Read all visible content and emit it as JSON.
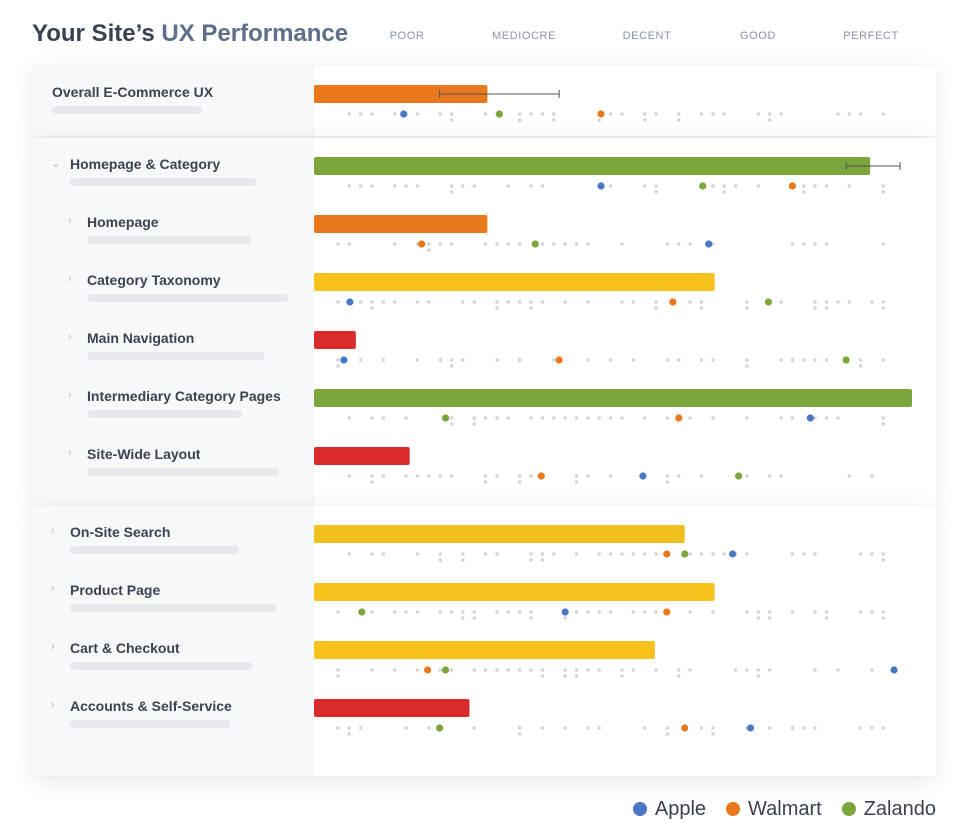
{
  "title": {
    "prefix": "Your Site’s",
    "accent": "UX Performance"
  },
  "chart_data": {
    "type": "bar",
    "orientation": "horizontal",
    "scale": [
      "POOR",
      "MEDIOCRE",
      "DECENT",
      "GOOD",
      "PERFECT"
    ],
    "xlim": [
      0,
      100
    ],
    "legend": {
      "placement": "bottom-right"
    },
    "series": [
      {
        "name": "Apple",
        "color": "#4a78c4"
      },
      {
        "name": "Walmart",
        "color": "#e8781b"
      },
      {
        "name": "Zalando",
        "color": "#7ca63b"
      }
    ],
    "rows": [
      {
        "label": "Overall E-Commerce UX",
        "group": 0,
        "level": 0,
        "value": 29,
        "error": [
          21,
          41
        ],
        "color": "#e8781b",
        "apple": 15,
        "walmart": 48,
        "zalando": 31
      },
      {
        "label": "Homepage & Category",
        "group": 1,
        "level": 0,
        "value": 93,
        "error": [
          89,
          98
        ],
        "color": "#7ca63b",
        "apple": 48,
        "walmart": 80,
        "zalando": 65
      },
      {
        "label": "Homepage",
        "group": 1,
        "level": 1,
        "value": 29,
        "color": "#e8781b",
        "apple": 66,
        "walmart": 18,
        "zalando": 37
      },
      {
        "label": "Category Taxonomy",
        "group": 1,
        "level": 1,
        "value": 67,
        "color": "#f8c21c",
        "apple": 6,
        "walmart": 60,
        "zalando": 76
      },
      {
        "label": "Main Navigation",
        "group": 1,
        "level": 1,
        "value": 7,
        "color": "#d92b2b",
        "apple": 5,
        "walmart": 41,
        "zalando": 89
      },
      {
        "label": "Intermediary Category Pages",
        "group": 1,
        "level": 1,
        "value": 100,
        "color": "#7ca63b",
        "apple": 83,
        "walmart": 61,
        "zalando": 22
      },
      {
        "label": "Site-Wide Layout",
        "group": 1,
        "level": 1,
        "value": 16,
        "color": "#d92b2b",
        "apple": 55,
        "walmart": 38,
        "zalando": 71
      },
      {
        "label": "On-Site Search",
        "group": 2,
        "level": 0,
        "value": 62,
        "color": "#f0c020",
        "apple": 70,
        "walmart": 59,
        "zalando": 62
      },
      {
        "label": "Product Page",
        "group": 2,
        "level": 0,
        "value": 67,
        "color": "#f8c21c",
        "apple": 42,
        "walmart": 59,
        "zalando": 8
      },
      {
        "label": "Cart & Checkout",
        "group": 2,
        "level": 0,
        "value": 57,
        "color": "#f8c21c",
        "apple": 97,
        "walmart": 19,
        "zalando": 22
      },
      {
        "label": "Accounts & Self-Service",
        "group": 2,
        "level": 0,
        "value": 26,
        "color": "#d92b2b",
        "apple": 73,
        "walmart": 62,
        "zalando": 21
      }
    ]
  }
}
